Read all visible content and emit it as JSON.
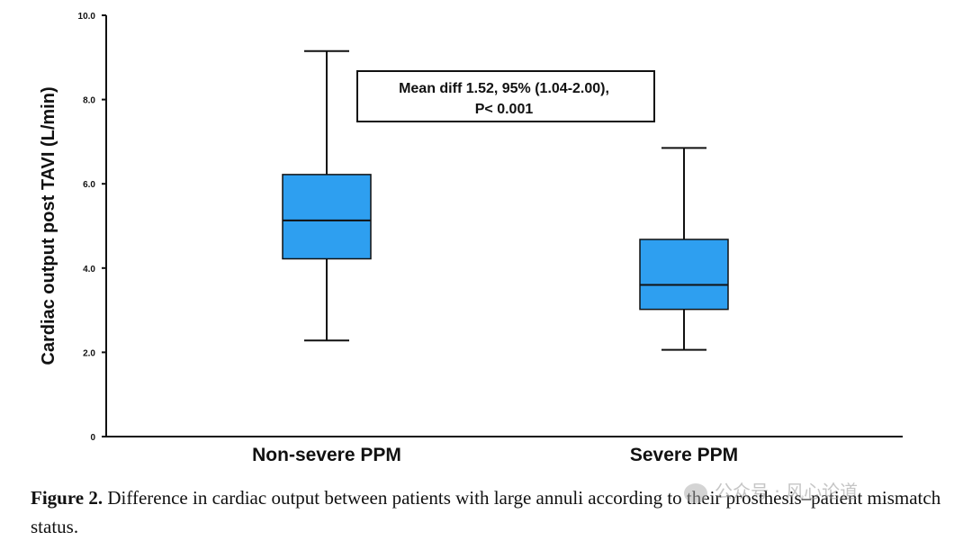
{
  "chart_data": {
    "type": "box",
    "ylabel": "Cardiac output post TAVI (L/min)",
    "ylim": [
      0,
      10
    ],
    "yticks": [
      "0",
      "2.0",
      "4.0",
      "6.0",
      "8.0",
      "10.0"
    ],
    "ytick_values": [
      0,
      2,
      4,
      6,
      8,
      10
    ],
    "box_color": "#2E9FF0",
    "categories": [
      "Non-severe PPM",
      "Severe PPM"
    ],
    "boxes": [
      {
        "category": "Non-severe PPM",
        "min": 2.28,
        "q1": 4.22,
        "median": 5.13,
        "q3": 6.22,
        "max": 9.15
      },
      {
        "category": "Severe PPM",
        "min": 2.06,
        "q1": 3.02,
        "median": 3.6,
        "q3": 4.68,
        "max": 6.85
      }
    ],
    "annotation": {
      "line1": "Mean diff 1.52, 95% (1.04-2.00),",
      "line2": "P< 0.001"
    }
  },
  "caption": {
    "label": "Figure 2.",
    "text": " Difference in cardiac output between patients with large annuli according to their prosthesis–patient mismatch status."
  },
  "watermark": {
    "text": "公众号 · 风心论道"
  }
}
